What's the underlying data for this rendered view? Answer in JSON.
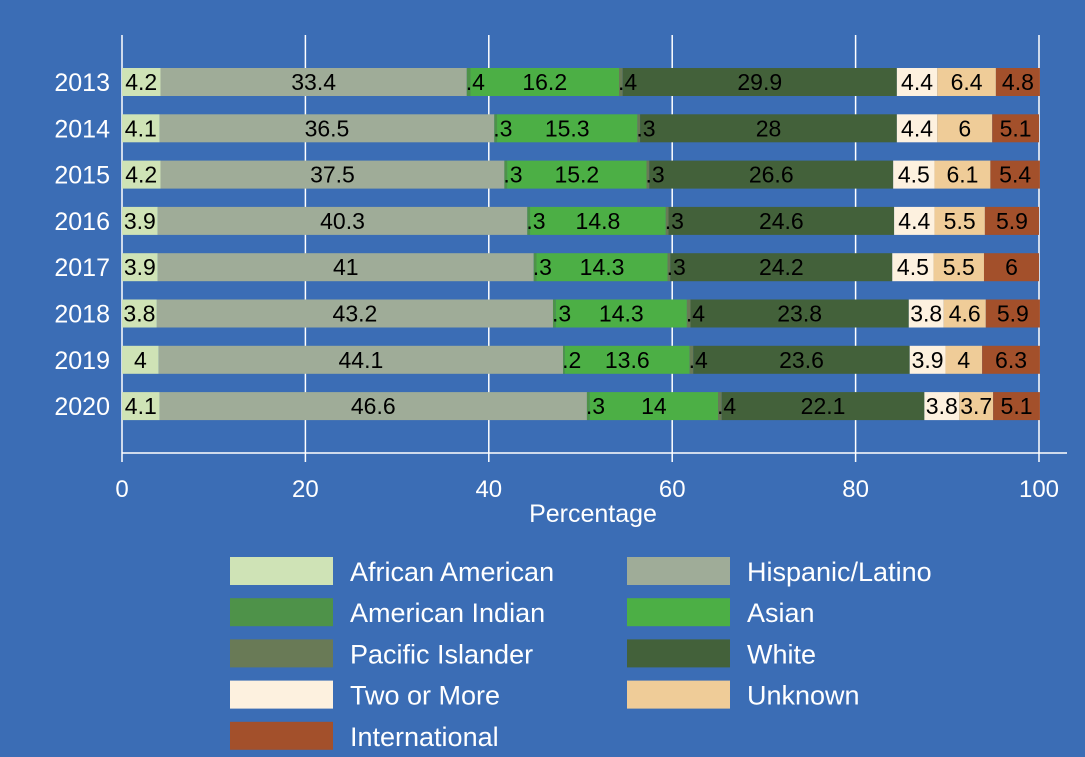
{
  "colors": {
    "background": "#3b6db5",
    "grid": "#ffffff",
    "text": "#ffffff",
    "segment_text": "#000000"
  },
  "chart_data": {
    "type": "bar",
    "orientation": "horizontal",
    "stacked": true,
    "title": "",
    "xlabel": "Percentage",
    "ylabel": "",
    "xlim": [
      0,
      100
    ],
    "xticks": [
      "0",
      "20",
      "40",
      "60",
      "80",
      "100"
    ],
    "categories": [
      "2013",
      "2014",
      "2015",
      "2016",
      "2017",
      "2018",
      "2019",
      "2020"
    ],
    "grid": "vertical",
    "legend_position": "bottom",
    "series": [
      {
        "name": "African American",
        "color": "#cfe3b6",
        "values": [
          4.2,
          4.1,
          4.2,
          3.9,
          3.9,
          3.8,
          4,
          4.1
        ],
        "labels": [
          "4.2",
          "4.1",
          "4.2",
          "3.9",
          "3.9",
          "3.8",
          "4",
          "4.1"
        ]
      },
      {
        "name": "Hispanic/Latino",
        "color": "#9fac98",
        "values": [
          33.4,
          36.5,
          37.5,
          40.3,
          41,
          43.2,
          44.1,
          46.6
        ],
        "labels": [
          "33.4",
          "36.5",
          "37.5",
          "40.3",
          "41",
          "43.2",
          "44.1",
          "46.6"
        ]
      },
      {
        "name": "American Indian",
        "color": "#4e9249",
        "values": [
          0.4,
          0.3,
          0.3,
          0.3,
          0.3,
          0.3,
          0.2,
          0.3
        ],
        "labels": [
          ".4",
          ".3",
          ".3",
          ".3",
          ".3",
          ".3",
          ".2",
          ".3"
        ]
      },
      {
        "name": "Asian",
        "color": "#4caf45",
        "values": [
          16.2,
          15.3,
          15.2,
          14.8,
          14.3,
          14.3,
          13.6,
          14
        ],
        "labels": [
          "16.2",
          "15.3",
          "15.2",
          "14.8",
          "14.3",
          "14.3",
          "13.6",
          "14"
        ]
      },
      {
        "name": "Pacific Islander",
        "color": "#697a56",
        "values": [
          0.4,
          0.3,
          0.3,
          0.3,
          0.3,
          0.4,
          0.4,
          0.4
        ],
        "labels": [
          ".4",
          ".3",
          ".3",
          ".3",
          ".3",
          ".4",
          ".4",
          ".4"
        ]
      },
      {
        "name": "White",
        "color": "#43613a",
        "values": [
          29.9,
          28,
          26.6,
          24.6,
          24.2,
          23.8,
          23.6,
          22.1
        ],
        "labels": [
          "29.9",
          "28",
          "26.6",
          "24.6",
          "24.2",
          "23.8",
          "23.6",
          "22.1"
        ]
      },
      {
        "name": "Two or More",
        "color": "#fdf1df",
        "values": [
          4.4,
          4.4,
          4.5,
          4.4,
          4.5,
          3.8,
          3.9,
          3.8
        ],
        "labels": [
          "4.4",
          "4.4",
          "4.5",
          "4.4",
          "4.5",
          "3.8",
          "3.9",
          "3.8"
        ]
      },
      {
        "name": "Unknown",
        "color": "#efcc98",
        "values": [
          6.4,
          6,
          6.1,
          5.5,
          5.5,
          4.6,
          4,
          3.7
        ],
        "labels": [
          "6.4",
          "6",
          "6.1",
          "5.5",
          "5.5",
          "4.6",
          "4",
          "3.7"
        ]
      },
      {
        "name": "International",
        "color": "#a3502b",
        "values": [
          4.8,
          5.1,
          5.4,
          5.9,
          6,
          5.9,
          6.3,
          5.1
        ],
        "labels": [
          "4.8",
          "5.1",
          "5.4",
          "5.9",
          "6",
          "5.9",
          "6.3",
          "5.1"
        ]
      }
    ]
  }
}
